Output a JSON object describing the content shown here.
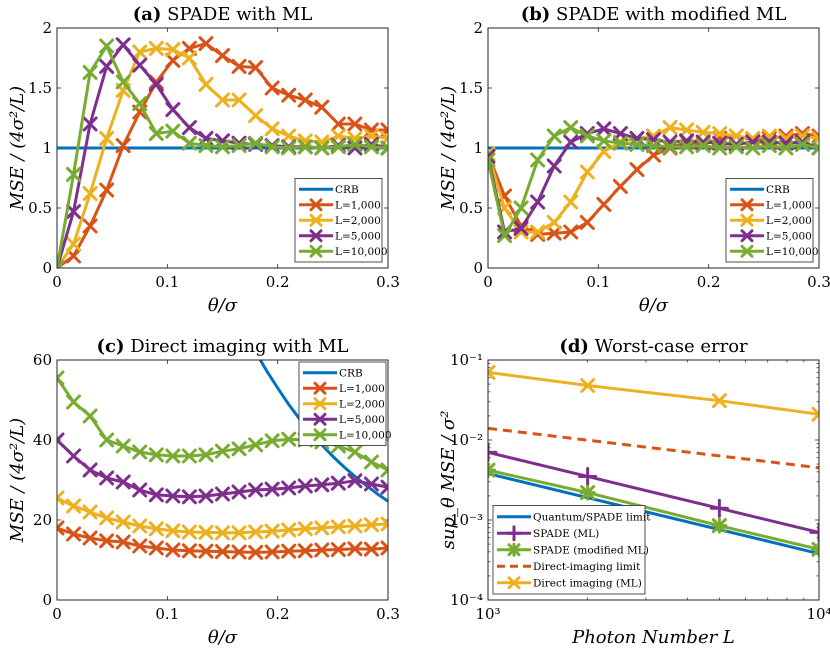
{
  "colors": {
    "blue": "#0072BD",
    "orange": "#D95319",
    "yellow": "#EDB120",
    "purple": "#7E2F8E",
    "green": "#77AC30"
  },
  "chart_data": [
    {
      "id": "a",
      "type": "line",
      "title_bold": "(a)",
      "title_rest": "SPADE with ML",
      "xlabel": "θ/σ",
      "ylabel": "MSE / (4σ²/L)",
      "xlim": [
        0,
        0.3
      ],
      "ylim": [
        0,
        2
      ],
      "xticks": [
        0,
        0.1,
        0.2,
        0.3
      ],
      "xtick_labels": [
        "0",
        "0.1",
        "0.2",
        "0.3"
      ],
      "yticks": [
        0,
        0.5,
        1,
        1.5,
        2
      ],
      "ytick_labels": [
        "0",
        "0.5",
        "1",
        "1.5",
        "2"
      ],
      "legend": [
        "CRB",
        "L=1,000",
        "L=2,000",
        "L=5,000",
        "L=10,000"
      ],
      "legend_position": "bottom-right",
      "series": [
        {
          "name": "CRB",
          "color": "blue",
          "marker": "none",
          "x": [
            0,
            0.3
          ],
          "y": [
            1,
            1
          ]
        },
        {
          "name": "L=1,000",
          "color": "orange",
          "marker": "x",
          "x": [
            0,
            0.015,
            0.03,
            0.045,
            0.06,
            0.075,
            0.09,
            0.105,
            0.12,
            0.135,
            0.15,
            0.165,
            0.18,
            0.195,
            0.21,
            0.225,
            0.24,
            0.255,
            0.27,
            0.285,
            0.3
          ],
          "y": [
            0,
            0.1,
            0.35,
            0.65,
            1.02,
            1.3,
            1.55,
            1.73,
            1.83,
            1.87,
            1.77,
            1.68,
            1.67,
            1.5,
            1.44,
            1.4,
            1.34,
            1.2,
            1.2,
            1.15,
            1.15
          ]
        },
        {
          "name": "L=2,000",
          "color": "yellow",
          "marker": "x",
          "x": [
            0,
            0.015,
            0.03,
            0.045,
            0.06,
            0.075,
            0.09,
            0.105,
            0.12,
            0.135,
            0.15,
            0.165,
            0.18,
            0.195,
            0.21,
            0.225,
            0.24,
            0.255,
            0.27,
            0.285,
            0.3
          ],
          "y": [
            0,
            0.2,
            0.62,
            1.08,
            1.48,
            1.8,
            1.83,
            1.82,
            1.75,
            1.53,
            1.4,
            1.4,
            1.27,
            1.16,
            1.1,
            1.06,
            1.05,
            1.1,
            1.08,
            1.1,
            1.08
          ]
        },
        {
          "name": "L=5,000",
          "color": "purple",
          "marker": "x",
          "x": [
            0,
            0.015,
            0.03,
            0.045,
            0.06,
            0.075,
            0.09,
            0.105,
            0.12,
            0.135,
            0.15,
            0.165,
            0.18,
            0.195,
            0.21,
            0.225,
            0.24,
            0.255,
            0.27,
            0.285,
            0.3
          ],
          "y": [
            0,
            0.47,
            1.2,
            1.68,
            1.86,
            1.69,
            1.53,
            1.32,
            1.17,
            1.08,
            1.06,
            1.04,
            1.03,
            1.02,
            1.01,
            1.01,
            1.0,
            1.02,
            1.0,
            1.03,
            1.0
          ]
        },
        {
          "name": "L=10,000",
          "color": "green",
          "marker": "x",
          "x": [
            0,
            0.015,
            0.03,
            0.045,
            0.06,
            0.075,
            0.09,
            0.105,
            0.12,
            0.135,
            0.15,
            0.165,
            0.18,
            0.195,
            0.21,
            0.225,
            0.24,
            0.255,
            0.27,
            0.285,
            0.3
          ],
          "y": [
            0,
            0.78,
            1.63,
            1.85,
            1.55,
            1.37,
            1.12,
            1.14,
            1.04,
            1.02,
            1.01,
            1.02,
            1.04,
            1.01,
            1.0,
            1.01,
            1.0,
            1.01,
            1.03,
            1.01,
            1.0
          ]
        }
      ]
    },
    {
      "id": "b",
      "type": "line",
      "title_bold": "(b)",
      "title_rest": "SPADE with modified ML",
      "xlabel": "θ/σ",
      "ylabel": "MSE / (4σ²/L)",
      "xlim": [
        0,
        0.3
      ],
      "ylim": [
        0,
        2
      ],
      "xticks": [
        0,
        0.1,
        0.2,
        0.3
      ],
      "xtick_labels": [
        "0",
        "0.1",
        "0.2",
        "0.3"
      ],
      "yticks": [
        0,
        0.5,
        1,
        1.5,
        2
      ],
      "ytick_labels": [
        "0",
        "0.5",
        "1",
        "1.5",
        "2"
      ],
      "legend": [
        "CRB",
        "L=1,000",
        "L=2,000",
        "L=5,000",
        "L=10,000"
      ],
      "legend_position": "bottom-right",
      "series": [
        {
          "name": "CRB",
          "color": "blue",
          "marker": "none",
          "x": [
            0,
            0.3
          ],
          "y": [
            1,
            1
          ]
        },
        {
          "name": "L=1,000",
          "color": "orange",
          "marker": "x",
          "x": [
            0,
            0.015,
            0.03,
            0.045,
            0.06,
            0.075,
            0.09,
            0.105,
            0.12,
            0.135,
            0.15,
            0.165,
            0.18,
            0.195,
            0.21,
            0.225,
            0.24,
            0.255,
            0.27,
            0.285,
            0.3
          ],
          "y": [
            0.95,
            0.6,
            0.35,
            0.28,
            0.29,
            0.3,
            0.38,
            0.53,
            0.68,
            0.82,
            0.94,
            1.0,
            1.05,
            1.03,
            1.08,
            1.1,
            1.07,
            1.08,
            1.1,
            1.12,
            1.1
          ]
        },
        {
          "name": "L=2,000",
          "color": "yellow",
          "marker": "x",
          "x": [
            0,
            0.015,
            0.03,
            0.045,
            0.06,
            0.075,
            0.09,
            0.105,
            0.12,
            0.135,
            0.15,
            0.165,
            0.18,
            0.195,
            0.21,
            0.225,
            0.24,
            0.255,
            0.27,
            0.285,
            0.3
          ],
          "y": [
            0.95,
            0.5,
            0.3,
            0.3,
            0.38,
            0.55,
            0.8,
            0.97,
            1.05,
            1.08,
            1.1,
            1.17,
            1.15,
            1.13,
            1.12,
            1.1,
            1.08,
            1.1,
            1.08,
            1.1,
            1.08
          ]
        },
        {
          "name": "L=5,000",
          "color": "purple",
          "marker": "x",
          "x": [
            0,
            0.015,
            0.03,
            0.045,
            0.06,
            0.075,
            0.09,
            0.105,
            0.12,
            0.135,
            0.15,
            0.165,
            0.18,
            0.195,
            0.21,
            0.225,
            0.24,
            0.255,
            0.27,
            0.285,
            0.3
          ],
          "y": [
            0.93,
            0.3,
            0.33,
            0.55,
            0.85,
            1.05,
            1.12,
            1.16,
            1.12,
            1.08,
            1.07,
            1.05,
            1.06,
            1.05,
            1.04,
            1.03,
            1.05,
            1.05,
            1.04,
            1.05,
            1.0
          ]
        },
        {
          "name": "L=10,000",
          "color": "green",
          "marker": "x",
          "x": [
            0,
            0.015,
            0.03,
            0.045,
            0.06,
            0.075,
            0.09,
            0.105,
            0.12,
            0.135,
            0.15,
            0.165,
            0.18,
            0.195,
            0.21,
            0.225,
            0.24,
            0.255,
            0.27,
            0.285,
            0.3
          ],
          "y": [
            0.9,
            0.27,
            0.5,
            0.9,
            1.1,
            1.17,
            1.1,
            1.06,
            1.04,
            1.03,
            1.02,
            1.01,
            1.01,
            1.02,
            1.0,
            1.01,
            1.0,
            1.02,
            1.0,
            1.03,
            1.0
          ]
        }
      ]
    },
    {
      "id": "c",
      "type": "line",
      "title_bold": "(c)",
      "title_rest": "Direct imaging with ML",
      "xlabel": "θ/σ",
      "ylabel": "MSE / (4σ²/L)",
      "xlim": [
        0,
        0.3
      ],
      "ylim": [
        0,
        60
      ],
      "xticks": [
        0,
        0.1,
        0.2,
        0.3
      ],
      "xtick_labels": [
        "0",
        "0.1",
        "0.2",
        "0.3"
      ],
      "yticks": [
        0,
        20,
        40,
        60
      ],
      "ytick_labels": [
        "0",
        "20",
        "40",
        "60"
      ],
      "legend": [
        "CRB",
        "L=1,000",
        "L=2,000",
        "L=5,000",
        "L=10,000"
      ],
      "legend_position": "top-right",
      "series": [
        {
          "name": "CRB",
          "color": "blue",
          "marker": "none",
          "x": [
            0.18,
            0.19,
            0.2,
            0.21,
            0.22,
            0.23,
            0.24,
            0.25,
            0.26,
            0.27,
            0.28,
            0.29,
            0.3
          ],
          "y": [
            62,
            57.3,
            53,
            48.9,
            45.2,
            41.9,
            38.8,
            35.9,
            33.3,
            30.9,
            28.7,
            26.6,
            24.7
          ]
        },
        {
          "name": "L=1,000",
          "color": "orange",
          "marker": "x",
          "x": [
            0,
            0.015,
            0.03,
            0.045,
            0.06,
            0.075,
            0.09,
            0.105,
            0.12,
            0.135,
            0.15,
            0.165,
            0.18,
            0.195,
            0.21,
            0.225,
            0.24,
            0.255,
            0.27,
            0.285,
            0.3
          ],
          "y": [
            18,
            16.5,
            15.5,
            14.8,
            14.5,
            13.5,
            13,
            12.5,
            12.3,
            12.2,
            12.1,
            12,
            11.9,
            12,
            12.2,
            12.3,
            12.5,
            12.6,
            12.8,
            12.7,
            13
          ]
        },
        {
          "name": "L=2,000",
          "color": "yellow",
          "marker": "x",
          "x": [
            0,
            0.015,
            0.03,
            0.045,
            0.06,
            0.075,
            0.09,
            0.105,
            0.12,
            0.135,
            0.15,
            0.165,
            0.18,
            0.195,
            0.21,
            0.225,
            0.24,
            0.255,
            0.27,
            0.285,
            0.3
          ],
          "y": [
            25.5,
            23.5,
            22,
            20.5,
            19.5,
            18.5,
            17.8,
            17.3,
            17,
            16.9,
            16.8,
            16.8,
            17,
            17.2,
            17.5,
            17.8,
            18,
            18.3,
            18.5,
            18.8,
            19
          ]
        },
        {
          "name": "L=5,000",
          "color": "purple",
          "marker": "x",
          "x": [
            0,
            0.015,
            0.03,
            0.045,
            0.06,
            0.075,
            0.09,
            0.105,
            0.12,
            0.135,
            0.15,
            0.165,
            0.18,
            0.195,
            0.21,
            0.225,
            0.24,
            0.255,
            0.27,
            0.285,
            0.3
          ],
          "y": [
            40,
            36,
            32.5,
            30.5,
            29.5,
            27.5,
            26.3,
            26,
            25.8,
            26,
            26.5,
            27,
            27.5,
            27.7,
            28,
            28.5,
            28.8,
            29.2,
            29.8,
            29,
            28.2
          ]
        },
        {
          "name": "L=10,000",
          "color": "green",
          "marker": "x",
          "x": [
            0,
            0.015,
            0.03,
            0.045,
            0.06,
            0.075,
            0.09,
            0.105,
            0.12,
            0.135,
            0.15,
            0.165,
            0.18,
            0.195,
            0.21,
            0.225,
            0.24,
            0.255,
            0.27,
            0.285,
            0.3
          ],
          "y": [
            55.5,
            49.5,
            46,
            40,
            38.5,
            37,
            36.3,
            36,
            36,
            36.3,
            37.2,
            37.8,
            38.8,
            39.8,
            40.2,
            40,
            39.5,
            38.5,
            37,
            34.5,
            32.5
          ]
        }
      ]
    },
    {
      "id": "d",
      "type": "line",
      "title_bold": "(d)",
      "title_rest": "Worst-case error",
      "xlabel": "Photon Number L",
      "ylabel": "sup_θ MSE / σ²",
      "xscale": "log",
      "yscale": "log",
      "xlim": [
        1000,
        10000
      ],
      "ylim": [
        0.0001,
        0.1
      ],
      "xticks": [
        1000,
        10000
      ],
      "xtick_labels": [
        "10³",
        "10⁴"
      ],
      "yticks": [
        0.0001,
        0.001,
        0.01,
        0.1
      ],
      "ytick_labels": [
        "10⁻⁴",
        "10⁻³",
        "10⁻²",
        "10⁻¹"
      ],
      "legend": [
        "Quantum/SPADE limit",
        "SPADE (ML)",
        "SPADE (modified ML)",
        "Direct-imaging limit",
        "Direct imaging (ML)"
      ],
      "legend_position": "bottom-left",
      "series": [
        {
          "name": "Quantum/SPADE limit",
          "color": "blue",
          "marker": "none",
          "style": "solid",
          "x": [
            1000,
            10000
          ],
          "y": [
            0.0038,
            0.00038
          ]
        },
        {
          "name": "SPADE (ML)",
          "color": "purple",
          "marker": "plus",
          "style": "solid",
          "x": [
            1000,
            2000,
            5000,
            10000
          ],
          "y": [
            0.007,
            0.0035,
            0.0014,
            0.0007
          ]
        },
        {
          "name": "SPADE (modified ML)",
          "color": "green",
          "marker": "star",
          "style": "solid",
          "x": [
            1000,
            2000,
            5000,
            10000
          ],
          "y": [
            0.0042,
            0.0022,
            0.00085,
            0.00043
          ]
        },
        {
          "name": "Direct-imaging limit",
          "color": "orange",
          "marker": "none",
          "style": "dashed",
          "x": [
            1000,
            10000
          ],
          "y": [
            0.014,
            0.0045
          ]
        },
        {
          "name": "Direct imaging (ML)",
          "color": "yellow",
          "marker": "x",
          "style": "solid",
          "x": [
            1000,
            2000,
            5000,
            10000
          ],
          "y": [
            0.07,
            0.048,
            0.031,
            0.021
          ]
        }
      ]
    }
  ]
}
